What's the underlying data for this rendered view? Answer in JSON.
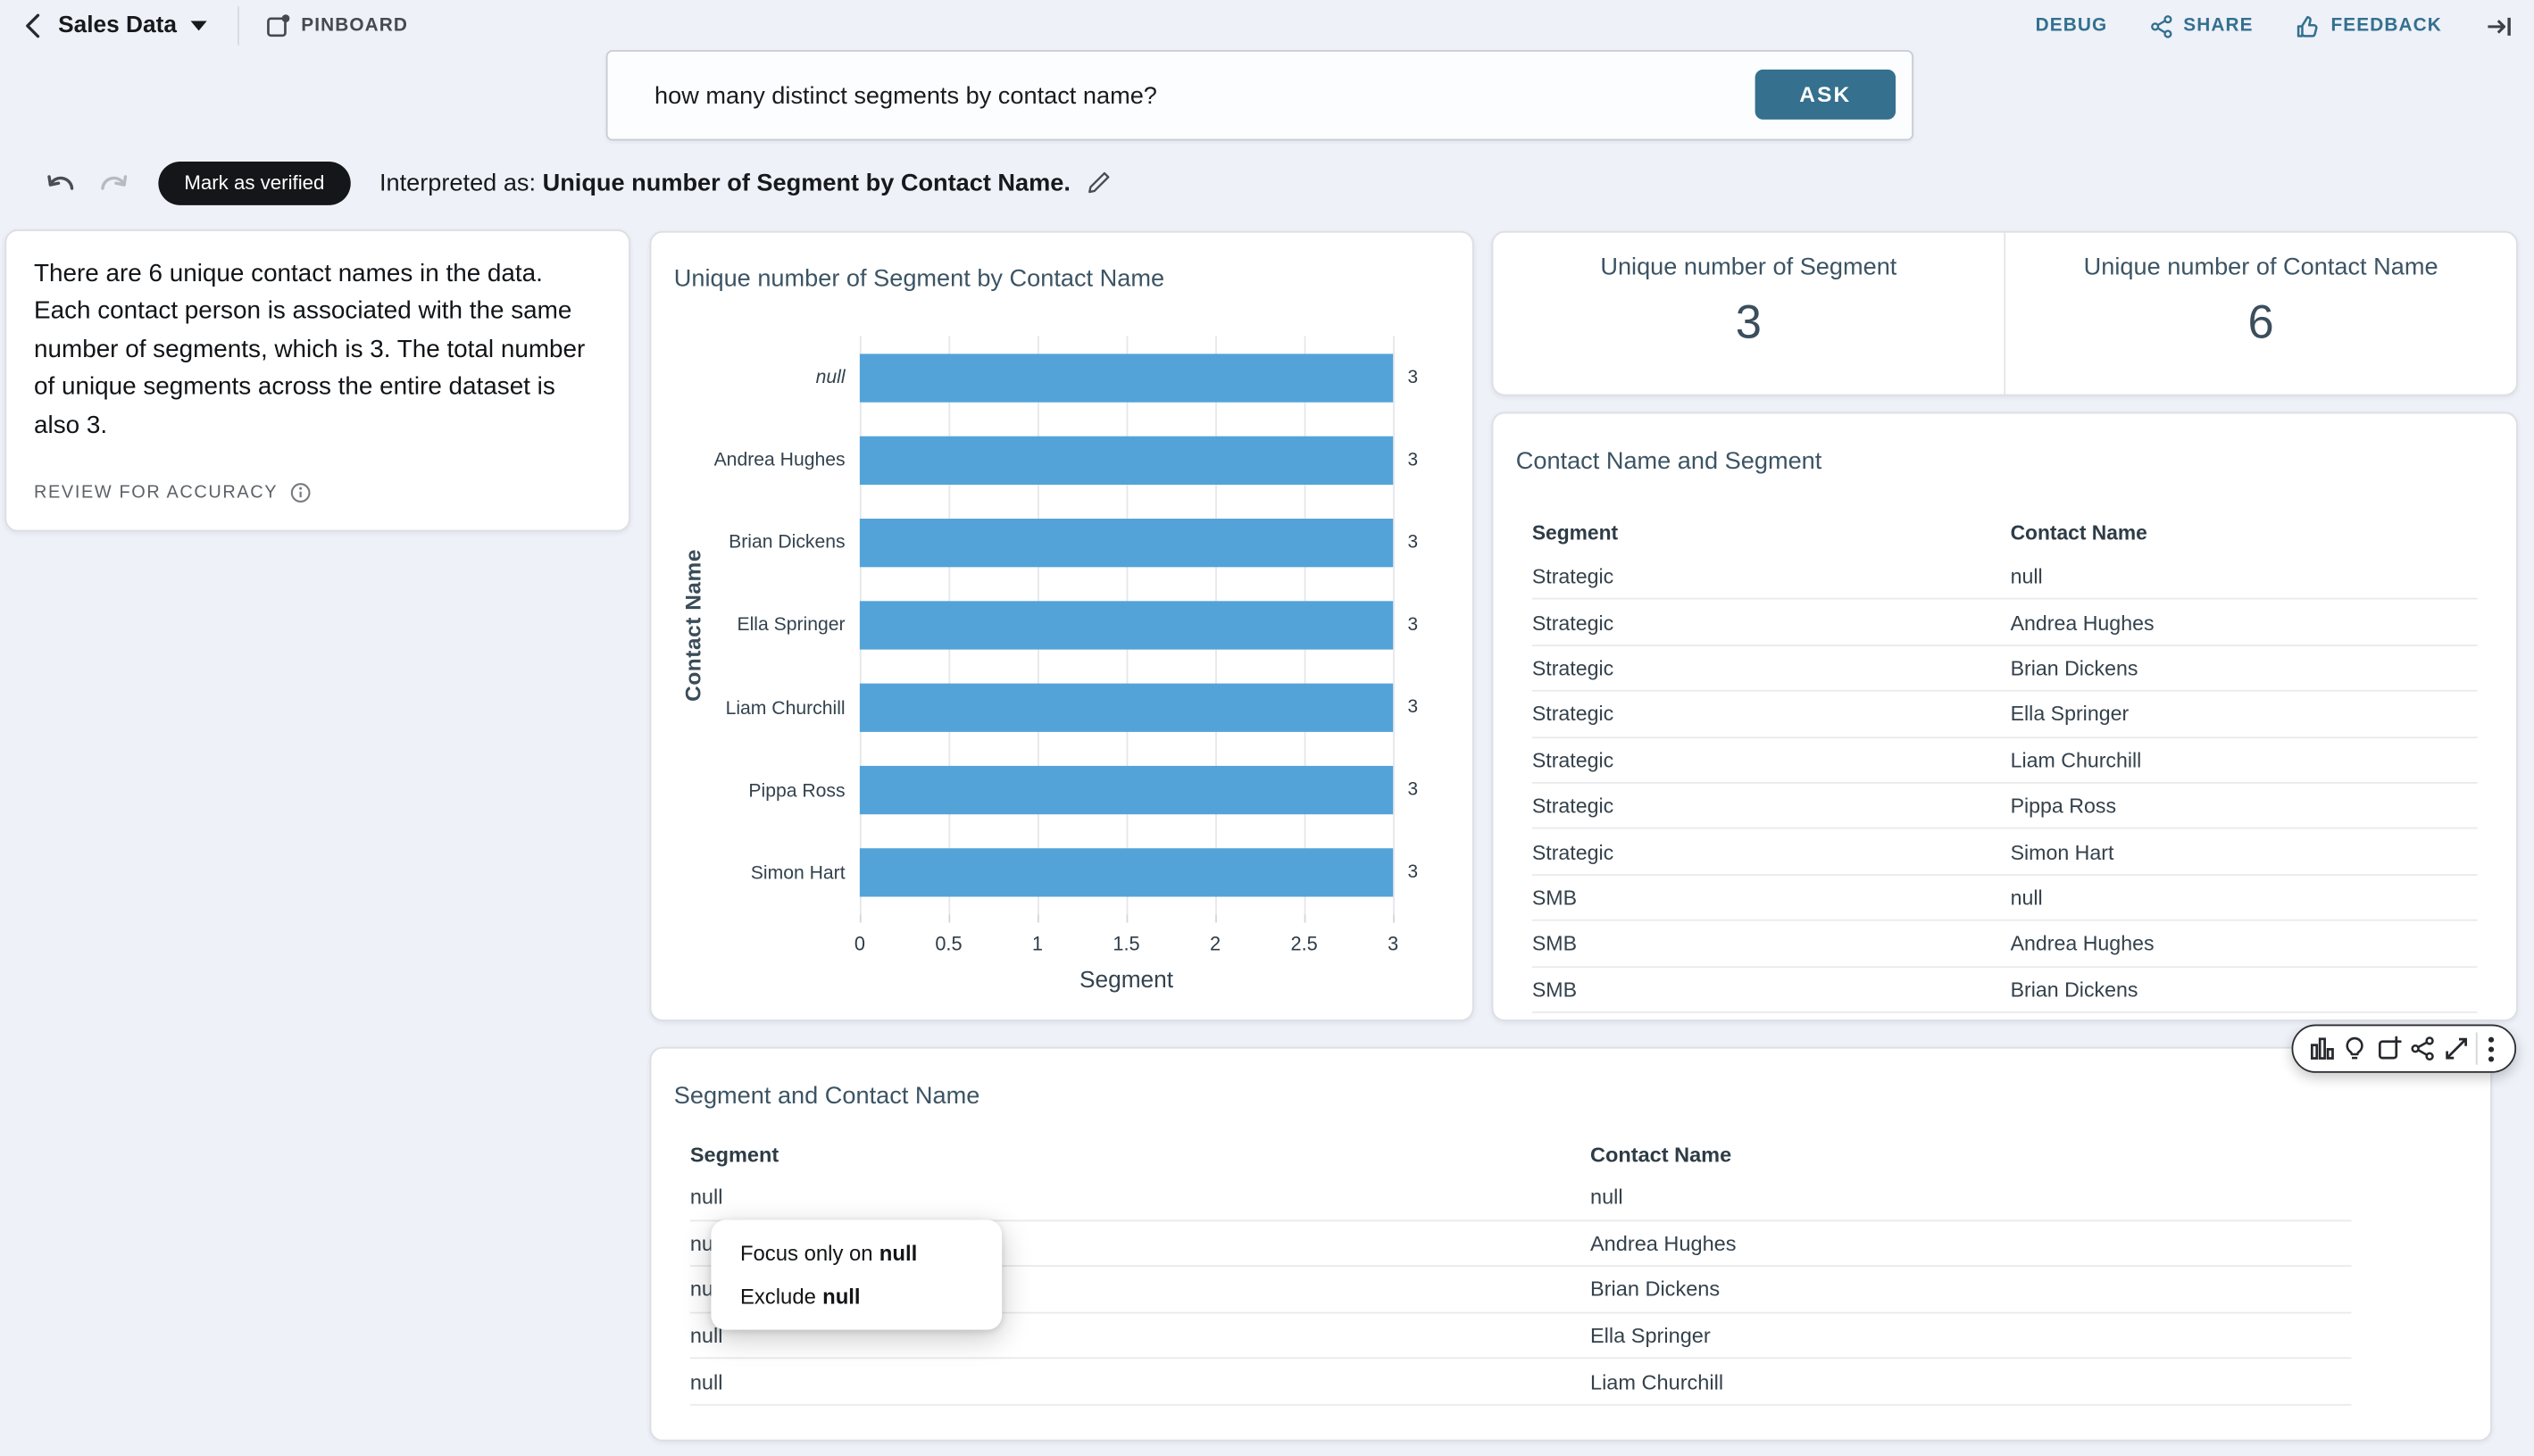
{
  "header": {
    "title": "Sales Data",
    "pinboard_label": "PINBOARD",
    "debug_label": "DEBUG",
    "share_label": "SHARE",
    "feedback_label": "FEEDBACK",
    "icons": [
      "back-chevron-icon",
      "caret-down-icon",
      "pinboard-icon",
      "share-icon",
      "thumbs-up-icon",
      "collapse-panel-icon"
    ]
  },
  "search": {
    "query": "how many distinct segments by contact name?",
    "ask_label": "ASK"
  },
  "verify": {
    "mark_verified_label": "Mark as verified",
    "interpreted_prefix": "Interpreted as:",
    "interpreted_text": "Unique number of Segment by Contact Name.",
    "icons": [
      "undo-icon",
      "redo-icon",
      "edit-pencil-icon"
    ]
  },
  "answer_panel": {
    "text": "There are 6 unique contact names in the data. Each contact person is associated with the same number of segments, which is 3. The total number of unique segments across the entire dataset is also 3.",
    "review_label": "REVIEW FOR ACCURACY",
    "review_icon": "info-icon"
  },
  "chart_data": {
    "type": "bar",
    "orientation": "horizontal",
    "title": "Unique number of Segment by Contact Name",
    "categories": [
      "null",
      "Andrea Hughes",
      "Brian Dickens",
      "Ella Springer",
      "Liam Churchill",
      "Pippa Ross",
      "Simon Hart"
    ],
    "values": [
      3,
      3,
      3,
      3,
      3,
      3,
      3
    ],
    "xlabel": "Segment",
    "ylabel": "Contact Name",
    "xlim": [
      0,
      3
    ],
    "xtick_labels": [
      "0",
      "0.5",
      "1",
      "1.5",
      "2",
      "2.5",
      "3"
    ],
    "grid": true,
    "value_labels": true,
    "bar_color": "#54a3d8",
    "legend": "none"
  },
  "kpis": [
    {
      "label": "Unique number of Segment",
      "value": "3"
    },
    {
      "label": "Unique number of Contact Name",
      "value": "6"
    }
  ],
  "table1": {
    "title": "Contact Name and Segment",
    "columns": [
      "Segment",
      "Contact Name"
    ],
    "rows": [
      [
        "Strategic",
        "null"
      ],
      [
        "Strategic",
        "Andrea Hughes"
      ],
      [
        "Strategic",
        "Brian Dickens"
      ],
      [
        "Strategic",
        "Ella Springer"
      ],
      [
        "Strategic",
        "Liam Churchill"
      ],
      [
        "Strategic",
        "Pippa Ross"
      ],
      [
        "Strategic",
        "Simon Hart"
      ],
      [
        "SMB",
        "null"
      ],
      [
        "SMB",
        "Andrea Hughes"
      ],
      [
        "SMB",
        "Brian Dickens"
      ]
    ]
  },
  "table2": {
    "title": "Segment and Contact Name",
    "columns": [
      "Segment",
      "Contact Name"
    ],
    "rows": [
      [
        "null",
        "null"
      ],
      [
        "null",
        "Andrea Hughes"
      ],
      [
        "null",
        "Brian Dickens"
      ],
      [
        "null",
        "Ella Springer"
      ],
      [
        "null",
        "Liam Churchill"
      ]
    ]
  },
  "context_menu": {
    "items": [
      {
        "prefix": "Focus only on",
        "bold": "null"
      },
      {
        "prefix": "Exclude",
        "bold": "null"
      }
    ]
  },
  "toolbar": {
    "icons": [
      "chart-type-icon",
      "insights-bulb-icon",
      "pin-to-board-icon",
      "share-icon",
      "expand-icon",
      "more-menu-icon"
    ]
  },
  "colors": {
    "accent_blue": "#33708f",
    "ask_button": "#35708f",
    "bar_fill": "#54a3d8",
    "slate_text": "#3c5464",
    "background": "#eef1f8",
    "verified_pill": "#141619"
  }
}
